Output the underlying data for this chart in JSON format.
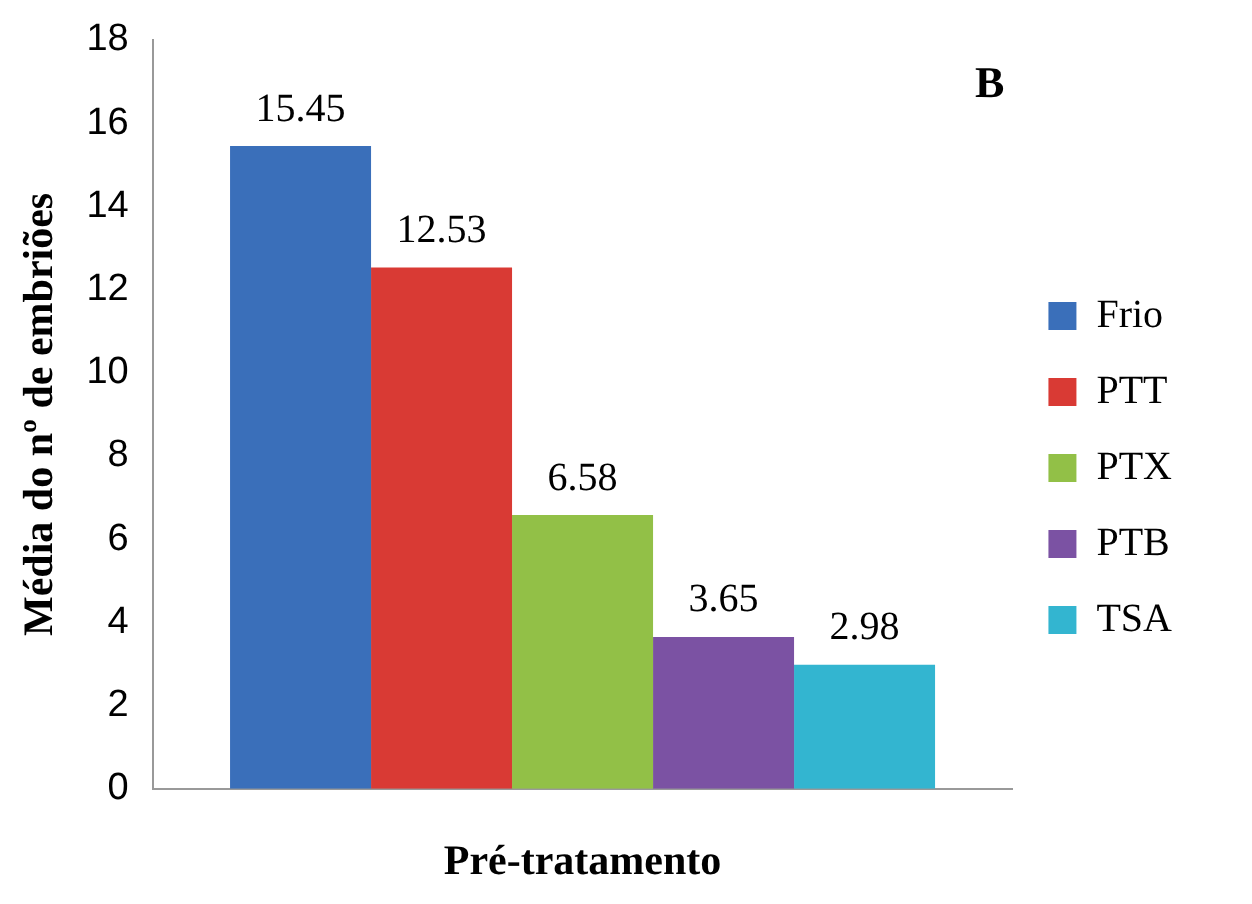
{
  "chart_data": {
    "type": "bar",
    "xlabel": "Pré-tratamento",
    "ylabel": "Média do nº de embriões",
    "annotations": [
      "B"
    ],
    "categories": [
      null
    ],
    "series": [
      {
        "name": "Frio",
        "color": "#3a6fba",
        "values": [
          15.45
        ]
      },
      {
        "name": "PTT",
        "color": "#d93a34",
        "values": [
          12.53
        ]
      },
      {
        "name": "PTX",
        "color": "#92c047",
        "values": [
          6.58
        ]
      },
      {
        "name": "PTB",
        "color": "#7b52a3",
        "values": [
          3.65
        ]
      },
      {
        "name": "TSA",
        "color": "#33b5d0",
        "values": [
          2.98
        ]
      }
    ],
    "ylim": [
      0,
      18
    ],
    "yticks": [
      0,
      2,
      4,
      6,
      8,
      10,
      12,
      14,
      16,
      18
    ],
    "grid": false,
    "legend": "right",
    "data_labels": true
  }
}
